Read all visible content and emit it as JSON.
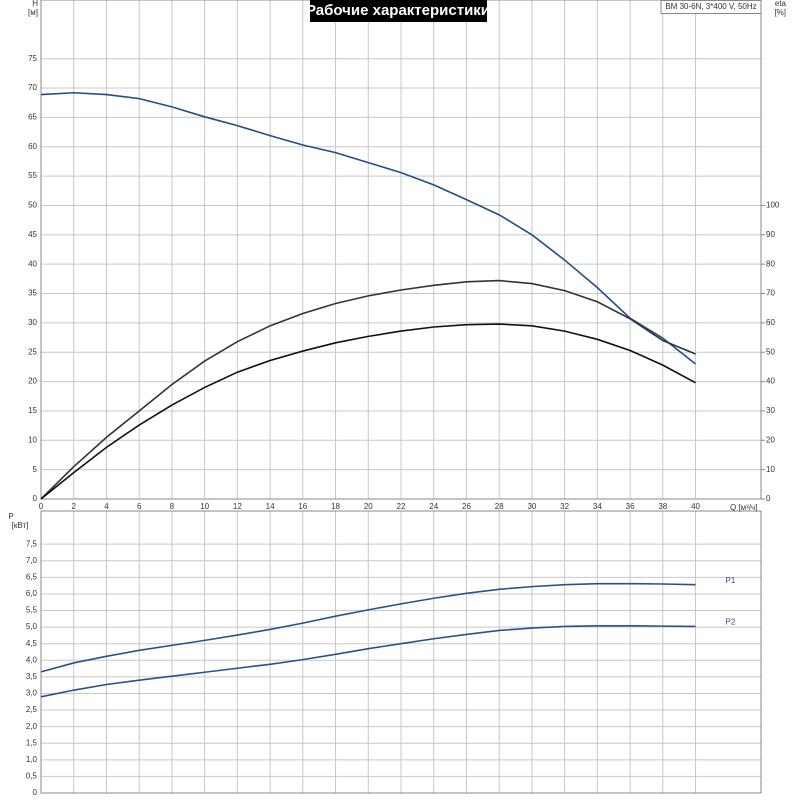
{
  "chart_data": [
    {
      "type": "line",
      "title": "Рабочие характеристики",
      "annotation": "BM 30-6N, 3*400 V, 50Hz",
      "x_label": "Q [м³/ч]",
      "y_label": "H",
      "y_unit": "[м]",
      "y2_label": "eta",
      "y2_unit": "[%]",
      "x": [
        0,
        2,
        4,
        6,
        8,
        10,
        12,
        14,
        16,
        18,
        20,
        22,
        24,
        26,
        28,
        30,
        32,
        34,
        36,
        38,
        40
      ],
      "xlim": [
        0,
        44
      ],
      "xticks": [
        0,
        2,
        4,
        6,
        8,
        10,
        12,
        14,
        16,
        18,
        20,
        22,
        24,
        26,
        28,
        30,
        32,
        34,
        36,
        38,
        40
      ],
      "ylim": [
        0,
        85
      ],
      "yticks": [
        0,
        5,
        10,
        15,
        20,
        25,
        30,
        35,
        40,
        45,
        50,
        55,
        60,
        65,
        70,
        75
      ],
      "y2lim": [
        0,
        170
      ],
      "y2ticks": [
        0,
        10,
        20,
        30,
        40,
        50,
        60,
        70,
        80,
        90,
        100
      ],
      "grid": true,
      "xtick_labels": true,
      "series": [
        {
          "color": "#1f4e8c",
          "values": [
            68.9,
            69.2,
            68.9,
            68.2,
            66.8,
            65.1,
            63.6,
            61.9,
            60.3,
            59,
            57.3,
            55.6,
            53.5,
            51,
            48.4,
            45,
            40.7,
            36,
            30.8,
            27.4,
            23
          ]
        },
        {
          "color": "#333333",
          "axis": "y2",
          "values": [
            0,
            11,
            21,
            30,
            39,
            47,
            53.6,
            59,
            63.2,
            66.6,
            69.2,
            71.2,
            72.8,
            74,
            74.4,
            73.4,
            71,
            67.2,
            61.4,
            54,
            49.4
          ]
        },
        {
          "color": "#111111",
          "axis": "y2",
          "values": [
            0,
            9,
            17.6,
            25.2,
            32,
            38,
            43.2,
            47.2,
            50.4,
            53.2,
            55.4,
            57.2,
            58.6,
            59.4,
            59.6,
            59,
            57.2,
            54.4,
            50.6,
            45.6,
            39.6
          ]
        }
      ]
    },
    {
      "type": "line",
      "y_label": "P",
      "y_unit": "[кВт]",
      "x": [
        0,
        2,
        4,
        6,
        8,
        10,
        12,
        14,
        16,
        18,
        20,
        22,
        24,
        26,
        28,
        30,
        32,
        34,
        36,
        38,
        40
      ],
      "xlim": [
        0,
        44
      ],
      "xticks": [
        0,
        2,
        4,
        6,
        8,
        10,
        12,
        14,
        16,
        18,
        20,
        22,
        24,
        26,
        28,
        30,
        32,
        34,
        36,
        38,
        40
      ],
      "ylim": [
        0,
        8.5
      ],
      "yticks": [
        0,
        {
          "value": 0.5,
          "label": "0,5"
        },
        {
          "value": 1,
          "label": "1,0"
        },
        {
          "value": 1.5,
          "label": "1,5"
        },
        {
          "value": 2,
          "label": "2,0"
        },
        {
          "value": 2.5,
          "label": "2,5"
        },
        {
          "value": 3,
          "label": "3,0"
        },
        {
          "value": 3.5,
          "label": "3,5"
        },
        {
          "value": 4,
          "label": "4,0"
        },
        {
          "value": 4.5,
          "label": "4,5"
        },
        {
          "value": 5,
          "label": "5,0"
        },
        {
          "value": 5.5,
          "label": "5,5"
        },
        {
          "value": 6,
          "label": "6,0"
        },
        {
          "value": 6.5,
          "label": "6,5"
        },
        {
          "value": 7,
          "label": "7,0"
        },
        {
          "value": 7.5,
          "label": "7,5"
        }
      ],
      "grid": true,
      "xtick_labels": false,
      "series": [
        {
          "name": "P1",
          "color": "#2b4f8f",
          "values": [
            3.65,
            3.92,
            4.12,
            4.3,
            4.45,
            4.6,
            4.76,
            4.93,
            5.12,
            5.33,
            5.52,
            5.7,
            5.87,
            6.02,
            6.14,
            6.22,
            6.28,
            6.31,
            6.31,
            6.3,
            6.28
          ]
        },
        {
          "name": "P2",
          "color": "#2b4f8f",
          "values": [
            2.9,
            3.1,
            3.27,
            3.4,
            3.52,
            3.64,
            3.76,
            3.88,
            4.02,
            4.18,
            4.35,
            4.5,
            4.65,
            4.78,
            4.9,
            4.97,
            5.02,
            5.04,
            5.04,
            5.03,
            5.02
          ]
        }
      ]
    }
  ]
}
